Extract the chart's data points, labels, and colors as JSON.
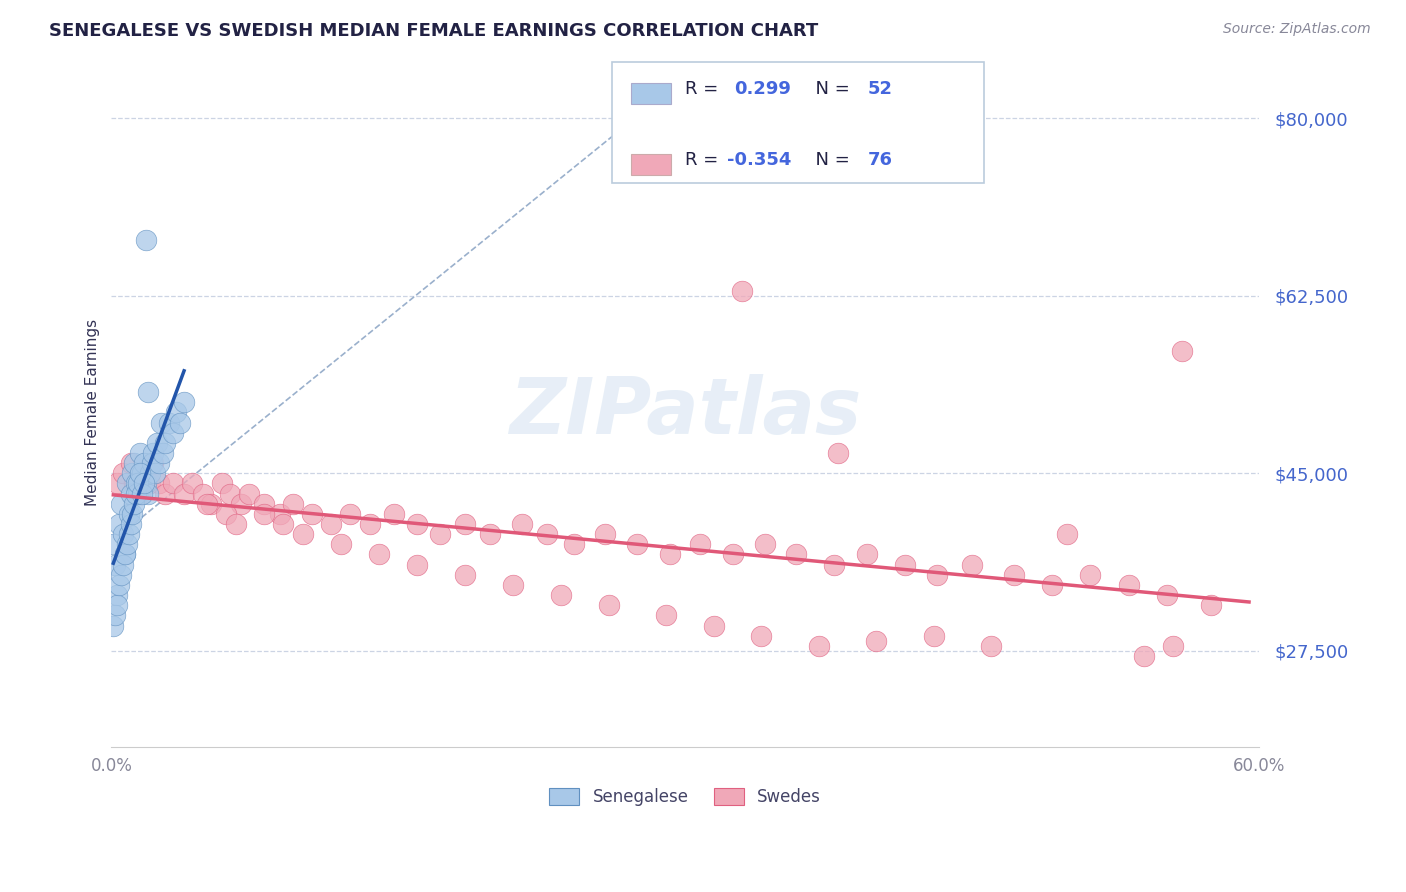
{
  "title": "SENEGALESE VS SWEDISH MEDIAN FEMALE EARNINGS CORRELATION CHART",
  "source_text": "Source: ZipAtlas.com",
  "ylabel": "Median Female Earnings",
  "xlim": [
    0.0,
    0.6
  ],
  "ylim": [
    18000,
    84000
  ],
  "yticks": [
    27500,
    45000,
    62500,
    80000
  ],
  "ytick_labels": [
    "$27,500",
    "$45,000",
    "$62,500",
    "$80,000"
  ],
  "xtick_left": "0.0%",
  "xtick_right": "60.0%",
  "blue_color": "#a8c8e8",
  "pink_color": "#f0a8b8",
  "blue_edge_color": "#6090c0",
  "pink_edge_color": "#e06080",
  "blue_line_color": "#2255aa",
  "pink_line_color": "#e05878",
  "ref_line_color": "#9ab0cc",
  "ytick_color": "#4466cc",
  "xtick_color": "#888899",
  "title_color": "#222244",
  "source_color": "#888899",
  "ylabel_color": "#333355",
  "watermark_text": "ZIPatlas",
  "watermark_color": "#dde8f4",
  "legend_R1": "0.299",
  "legend_N1": "52",
  "legend_R2": "-0.354",
  "legend_N2": "76",
  "legend_label1": "Senegalese",
  "legend_label2": "Swedes",
  "senegalese_x": [
    0.001,
    0.002,
    0.003,
    0.004,
    0.005,
    0.006,
    0.007,
    0.008,
    0.009,
    0.01,
    0.011,
    0.012,
    0.013,
    0.014,
    0.015,
    0.016,
    0.017,
    0.018,
    0.019,
    0.02,
    0.021,
    0.022,
    0.023,
    0.024,
    0.025,
    0.026,
    0.027,
    0.028,
    0.03,
    0.032,
    0.034,
    0.036,
    0.038,
    0.001,
    0.002,
    0.003,
    0.004,
    0.005,
    0.006,
    0.007,
    0.008,
    0.009,
    0.01,
    0.011,
    0.012,
    0.013,
    0.014,
    0.015,
    0.016,
    0.017,
    0.018,
    0.019
  ],
  "senegalese_y": [
    38000,
    36000,
    33000,
    40000,
    42000,
    39000,
    37000,
    44000,
    41000,
    43000,
    45000,
    46000,
    44000,
    43000,
    47000,
    45000,
    46000,
    44000,
    43000,
    45000,
    46000,
    47000,
    45000,
    48000,
    46000,
    50000,
    47000,
    48000,
    50000,
    49000,
    51000,
    50000,
    52000,
    30000,
    31000,
    32000,
    34000,
    35000,
    36000,
    37000,
    38000,
    39000,
    40000,
    41000,
    42000,
    43000,
    44000,
    45000,
    43000,
    44000,
    68000,
    53000
  ],
  "swedes_x": [
    0.003,
    0.006,
    0.01,
    0.012,
    0.015,
    0.018,
    0.02,
    0.022,
    0.025,
    0.028,
    0.032,
    0.038,
    0.042,
    0.048,
    0.052,
    0.058,
    0.062,
    0.068,
    0.072,
    0.08,
    0.088,
    0.095,
    0.105,
    0.115,
    0.125,
    0.135,
    0.148,
    0.16,
    0.172,
    0.185,
    0.198,
    0.215,
    0.228,
    0.242,
    0.258,
    0.275,
    0.292,
    0.308,
    0.325,
    0.342,
    0.358,
    0.378,
    0.395,
    0.415,
    0.432,
    0.45,
    0.472,
    0.492,
    0.512,
    0.532,
    0.552,
    0.575,
    0.05,
    0.06,
    0.065,
    0.08,
    0.09,
    0.1,
    0.12,
    0.14,
    0.16,
    0.185,
    0.21,
    0.235,
    0.26,
    0.29,
    0.315,
    0.34,
    0.37,
    0.4,
    0.43,
    0.46,
    0.38,
    0.5,
    0.54,
    0.555
  ],
  "swedes_y": [
    44000,
    45000,
    46000,
    44000,
    43000,
    45000,
    44000,
    46000,
    44000,
    43000,
    44000,
    43000,
    44000,
    43000,
    42000,
    44000,
    43000,
    42000,
    43000,
    42000,
    41000,
    42000,
    41000,
    40000,
    41000,
    40000,
    41000,
    40000,
    39000,
    40000,
    39000,
    40000,
    39000,
    38000,
    39000,
    38000,
    37000,
    38000,
    37000,
    38000,
    37000,
    36000,
    37000,
    36000,
    35000,
    36000,
    35000,
    34000,
    35000,
    34000,
    33000,
    32000,
    42000,
    41000,
    40000,
    41000,
    40000,
    39000,
    38000,
    37000,
    36000,
    35000,
    34000,
    33000,
    32000,
    31000,
    30000,
    29000,
    28000,
    28500,
    29000,
    28000,
    47000,
    39000,
    27000,
    28000
  ]
}
